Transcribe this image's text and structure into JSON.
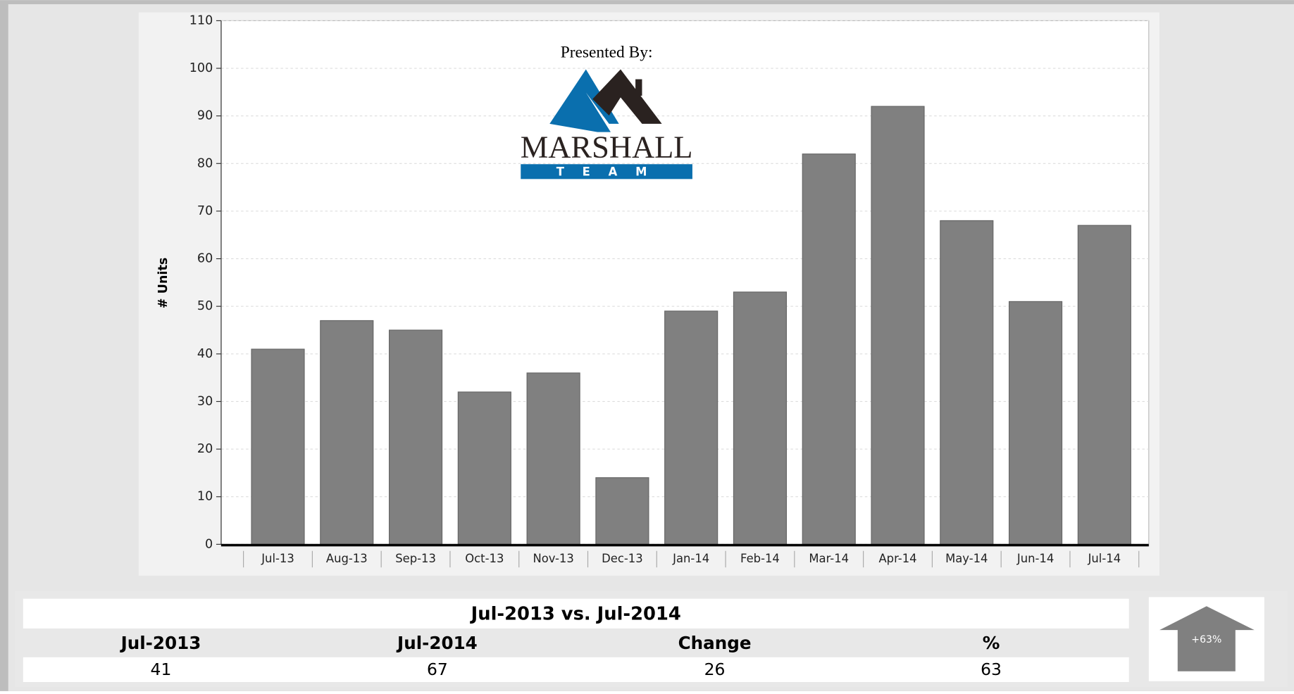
{
  "chart_data": {
    "type": "bar",
    "y_label": "# Units",
    "categories": [
      "Jul-13",
      "Aug-13",
      "Sep-13",
      "Oct-13",
      "Nov-13",
      "Dec-13",
      "Jan-14",
      "Feb-14",
      "Mar-14",
      "Apr-14",
      "May-14",
      "Jun-14",
      "Jul-14"
    ],
    "values": [
      41,
      47,
      45,
      32,
      36,
      14,
      49,
      53,
      82,
      92,
      68,
      51,
      67
    ],
    "color": "#808080",
    "ylim": [
      0,
      110
    ],
    "yticks": [
      0,
      10,
      20,
      30,
      40,
      50,
      60,
      70,
      80,
      90,
      100,
      110
    ],
    "grid": true
  },
  "logo": {
    "caption": "Presented By:",
    "name": "MARSHALL",
    "tagline": "TEAM"
  },
  "comparison": {
    "title": "Jul-2013 vs. Jul-2014",
    "headers": [
      "Jul-2013",
      "Jul-2014",
      "Change",
      "%"
    ],
    "values": [
      "41",
      "67",
      "26",
      "63"
    ],
    "arrow_label": "+63%"
  }
}
